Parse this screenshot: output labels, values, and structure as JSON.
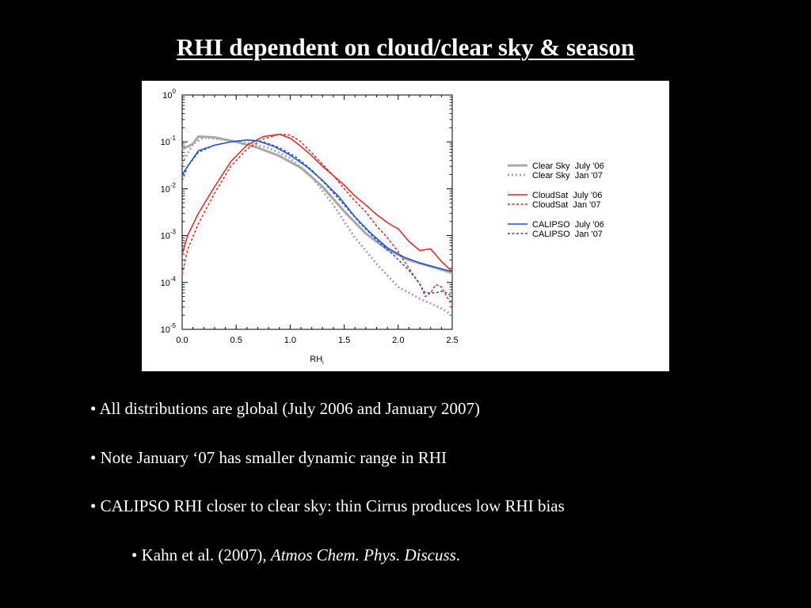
{
  "slide": {
    "title": "RHI dependent on cloud/clear sky & season"
  },
  "bullets": [
    "• All distributions are global (July 2006 and January 2007)",
    "• Note January ‘07 has smaller dynamic range in RHI",
    "• CALIPSO RHI closer to clear sky: thin Cirrus produces low RHI bias"
  ],
  "citation": {
    "prefix": "• Kahn et al. (2007), ",
    "journal": "Atmos Chem. Phys. Discuss",
    "suffix": "."
  },
  "chart_data": {
    "type": "line",
    "xlabel": "RH",
    "xlabel_subscript": "i",
    "ylabel": "",
    "xlim": [
      0.0,
      2.5
    ],
    "ylim": [
      1e-05,
      1
    ],
    "yscale": "log",
    "grid": false,
    "legend_position": "right",
    "x_ticks": [
      0.0,
      0.5,
      1.0,
      1.5,
      2.0,
      2.5
    ],
    "x_tick_labels": [
      "0.0",
      "0.5",
      "1.0",
      "1.5",
      "2.0",
      "2.5"
    ],
    "y_tick_labels": [
      {
        "base": "10",
        "exp": "0"
      },
      {
        "base": "10",
        "exp": "-1"
      },
      {
        "base": "10",
        "exp": "-2"
      },
      {
        "base": "10",
        "exp": "-3"
      },
      {
        "base": "10",
        "exp": "-4"
      },
      {
        "base": "10",
        "exp": "-5"
      }
    ],
    "y_tick_values": [
      1,
      0.1,
      0.01,
      0.001,
      0.0001,
      1e-05
    ],
    "series": [
      {
        "name": "Clear Sky  July '06",
        "color": "#a8a8a8",
        "style": "solid",
        "width": 3,
        "x": [
          0.0,
          0.1,
          0.15,
          0.3,
          0.5,
          0.7,
          0.9,
          1.1,
          1.3,
          1.5,
          1.7,
          1.9,
          2.1,
          2.3,
          2.5
        ],
        "y": [
          0.07,
          0.09,
          0.13,
          0.125,
          0.1,
          0.075,
          0.05,
          0.028,
          0.011,
          0.0033,
          0.0011,
          0.0005,
          0.0003,
          0.00022,
          0.00016
        ]
      },
      {
        "name": "Clear Sky  Jan '07",
        "color": "#a8a8a8",
        "style": "dotted",
        "width": 3,
        "x": [
          0.0,
          0.1,
          0.2,
          0.4,
          0.6,
          0.8,
          1.0,
          1.2,
          1.4,
          1.6,
          1.8,
          2.0,
          2.2,
          2.4,
          2.5
        ],
        "y": [
          0.035,
          0.09,
          0.125,
          0.11,
          0.095,
          0.075,
          0.045,
          0.018,
          0.0045,
          0.0009,
          0.00025,
          8e-05,
          4.5e-05,
          2.8e-05,
          2e-05
        ]
      },
      {
        "name": "CloudSat  July '06",
        "color": "#e8231c",
        "style": "solid",
        "width": 1.5,
        "x": [
          0.0,
          0.05,
          0.15,
          0.3,
          0.45,
          0.6,
          0.75,
          0.9,
          1.0,
          1.1,
          1.2,
          1.3,
          1.4,
          1.5,
          1.6,
          1.7,
          1.8,
          1.9,
          1.95,
          2.0,
          2.1,
          2.2,
          2.3,
          2.4,
          2.5
        ],
        "y": [
          0.0004,
          0.001,
          0.003,
          0.011,
          0.038,
          0.085,
          0.13,
          0.145,
          0.12,
          0.08,
          0.05,
          0.03,
          0.019,
          0.012,
          0.007,
          0.0045,
          0.0028,
          0.0019,
          0.0016,
          0.0014,
          0.00075,
          0.00048,
          0.00052,
          0.00028,
          0.00017
        ]
      },
      {
        "name": "CloudSat  Jan '07",
        "color": "#e8231c",
        "style": "dashed",
        "width": 1.5,
        "x": [
          0.0,
          0.05,
          0.15,
          0.3,
          0.45,
          0.6,
          0.75,
          0.9,
          1.0,
          1.1,
          1.2,
          1.3,
          1.4,
          1.5,
          1.6,
          1.7,
          1.8,
          1.9,
          2.0,
          2.1,
          2.2,
          2.25,
          2.3,
          2.35,
          2.4,
          2.45,
          2.5
        ],
        "y": [
          0.00015,
          0.0005,
          0.0018,
          0.008,
          0.03,
          0.07,
          0.115,
          0.145,
          0.14,
          0.1,
          0.058,
          0.033,
          0.019,
          0.01,
          0.0055,
          0.0032,
          0.0016,
          0.0009,
          0.00045,
          0.0002,
          9e-05,
          6e-05,
          6e-05,
          9e-05,
          8e-05,
          5e-05,
          3.2e-05
        ]
      },
      {
        "name": "CALIPSO  July '06",
        "color": "#1a4fdc",
        "style": "solid",
        "width": 1.5,
        "x": [
          0.0,
          0.05,
          0.15,
          0.3,
          0.45,
          0.6,
          0.7,
          0.85,
          1.0,
          1.15,
          1.3,
          1.45,
          1.6,
          1.75,
          1.9,
          2.05,
          2.2,
          2.35,
          2.5
        ],
        "y": [
          0.02,
          0.03,
          0.065,
          0.085,
          0.1,
          0.11,
          0.105,
          0.08,
          0.052,
          0.03,
          0.015,
          0.0068,
          0.0025,
          0.0011,
          0.00055,
          0.00035,
          0.00026,
          0.00021,
          0.00017
        ]
      },
      {
        "name": "CALIPSO  Jan '07",
        "color": "#1a4fdc",
        "style": "dashed",
        "width": 1.5,
        "x": [
          0.0,
          0.05,
          0.15,
          0.3,
          0.45,
          0.6,
          0.75,
          0.9,
          1.05,
          1.2,
          1.35,
          1.5,
          1.65,
          1.8,
          1.95,
          2.1,
          2.2,
          2.25,
          2.3,
          2.35,
          2.4,
          2.45,
          2.5
        ],
        "y": [
          0.015,
          0.03,
          0.06,
          0.085,
          0.1,
          0.11,
          0.1,
          0.075,
          0.048,
          0.025,
          0.011,
          0.0045,
          0.0018,
          0.0008,
          0.0004,
          0.00018,
          9.5e-05,
          5e-05,
          6e-05,
          6e-05,
          6.5e-05,
          6e-05,
          5e-05
        ]
      }
    ]
  }
}
